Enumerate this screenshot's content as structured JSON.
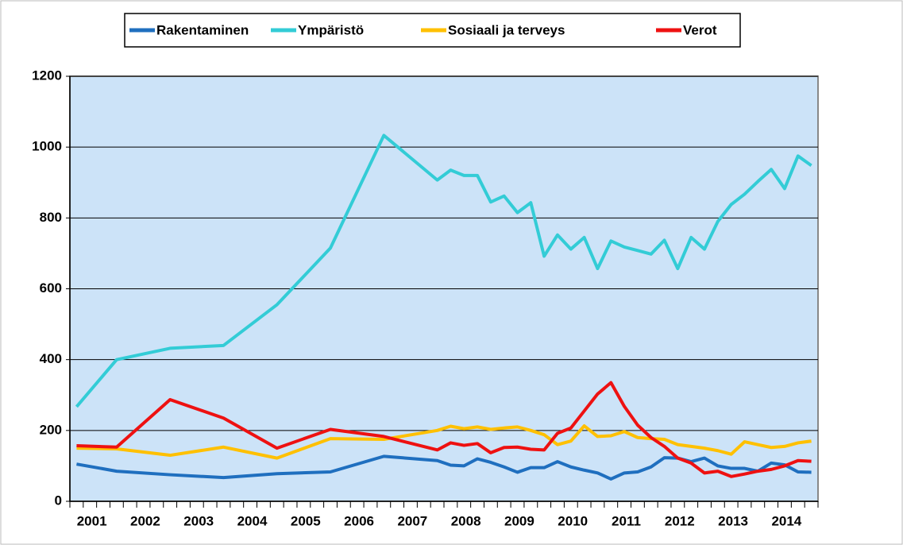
{
  "chart_data": {
    "type": "line",
    "x": [
      2001.125,
      2001.875,
      2002.875,
      2003.875,
      2004.875,
      2005.875,
      2006.875,
      2007.875,
      2008.125,
      2008.375,
      2008.625,
      2008.875,
      2009.125,
      2009.375,
      2009.625,
      2009.875,
      2010.125,
      2010.375,
      2010.625,
      2010.875,
      2011.125,
      2011.375,
      2011.625,
      2011.875,
      2012.125,
      2012.375,
      2012.625,
      2012.875,
      2013.125,
      2013.375,
      2013.625,
      2013.875,
      2014.125,
      2014.375,
      2014.625,
      2014.875
    ],
    "series": [
      {
        "name": "Rakentaminen",
        "color": "#1f6fbf",
        "values": [
          105,
          85,
          75,
          67,
          78,
          83,
          127,
          115,
          102,
          100,
          120,
          110,
          97,
          82,
          95,
          95,
          112,
          97,
          88,
          80,
          63,
          80,
          83,
          97,
          123,
          122,
          112,
          122,
          100,
          93,
          93,
          85,
          108,
          103,
          83,
          82
        ]
      },
      {
        "name": "Ympäristö",
        "color": "#33ccd6",
        "values": [
          267,
          400,
          432,
          440,
          555,
          715,
          1033,
          907,
          935,
          920,
          920,
          845,
          862,
          815,
          843,
          692,
          752,
          712,
          745,
          657,
          735,
          718,
          708,
          698,
          737,
          657,
          745,
          712,
          790,
          838,
          867,
          903,
          937,
          883,
          975,
          948
        ]
      },
      {
        "name": "Sosiaali ja terveys",
        "color": "#ffc000",
        "values": [
          150,
          148,
          130,
          153,
          122,
          177,
          175,
          200,
          212,
          205,
          210,
          203,
          207,
          210,
          200,
          188,
          160,
          170,
          213,
          183,
          185,
          197,
          180,
          177,
          175,
          160,
          155,
          150,
          143,
          133,
          168,
          160,
          152,
          155,
          165,
          170
        ]
      },
      {
        "name": "Verot",
        "color": "#ee1111",
        "values": [
          157,
          153,
          287,
          235,
          150,
          203,
          183,
          145,
          165,
          158,
          163,
          137,
          152,
          153,
          147,
          145,
          192,
          207,
          255,
          303,
          335,
          268,
          215,
          180,
          155,
          122,
          108,
          80,
          85,
          70,
          77,
          85,
          90,
          100,
          115,
          113
        ]
      }
    ],
    "xlim": [
      2001,
      2015
    ],
    "xticks": [
      2001,
      2002,
      2003,
      2004,
      2005,
      2006,
      2007,
      2008,
      2009,
      2010,
      2011,
      2012,
      2013,
      2014
    ],
    "ylim": [
      0,
      1200
    ],
    "yticks": [
      0,
      200,
      400,
      600,
      800,
      1000,
      1200
    ],
    "grid": true,
    "legend": "top"
  }
}
